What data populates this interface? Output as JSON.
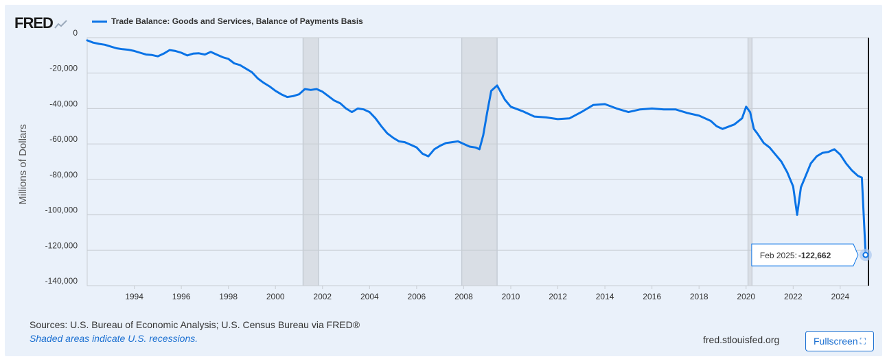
{
  "logo_text": "FRED",
  "header": {
    "legend_label": "Trade Balance: Goods and Services, Balance of Payments Basis",
    "line_color": "#0a73e6"
  },
  "footer": {
    "sources": "Sources: U.S. Bureau of Economic Analysis; U.S. Census Bureau via FRED®",
    "recession_note": "Shaded areas indicate U.S. recessions.",
    "site": "fred.stlouisfed.org",
    "fullscreen_label": "Fullscreen"
  },
  "tooltip": {
    "label": "Feb 2025:",
    "value": "-122,662"
  },
  "chart_data": {
    "type": "line",
    "title": "Trade Balance: Goods and Services, Balance of Payments Basis",
    "ylabel": "Millions of Dollars",
    "xlabel": "",
    "xlim": [
      1992.0,
      2025.2
    ],
    "ylim": [
      -140000,
      0
    ],
    "y_ticks": [
      0,
      -20000,
      -40000,
      -60000,
      -80000,
      -100000,
      -120000,
      -140000
    ],
    "y_tick_labels": [
      "0",
      "-20,000",
      "-40,000",
      "-60,000",
      "-80,000",
      "-100,000",
      "-120,000",
      "-140,000"
    ],
    "x_ticks": [
      1994,
      1996,
      1998,
      2000,
      2002,
      2004,
      2006,
      2008,
      2010,
      2012,
      2014,
      2016,
      2018,
      2020,
      2022,
      2024
    ],
    "x_tick_labels": [
      "1994",
      "1996",
      "1998",
      "2000",
      "2002",
      "2004",
      "2006",
      "2008",
      "2010",
      "2012",
      "2014",
      "2016",
      "2018",
      "2020",
      "2022",
      "2024"
    ],
    "recessions": [
      [
        2001.17,
        2001.83
      ],
      [
        2007.92,
        2009.42
      ],
      [
        2020.08,
        2020.25
      ]
    ],
    "highlight": {
      "x": 2025.08,
      "y": -122662
    },
    "series": [
      {
        "name": "Trade Balance: Goods and Services, Balance of Payments Basis",
        "x": [
          1992.0,
          1992.25,
          1992.5,
          1992.75,
          1993.0,
          1993.25,
          1993.5,
          1993.75,
          1994.0,
          1994.25,
          1994.5,
          1994.75,
          1995.0,
          1995.25,
          1995.5,
          1995.75,
          1996.0,
          1996.25,
          1996.5,
          1996.75,
          1997.0,
          1997.25,
          1997.5,
          1997.75,
          1998.0,
          1998.25,
          1998.5,
          1998.75,
          1999.0,
          1999.25,
          1999.5,
          1999.75,
          2000.0,
          2000.25,
          2000.5,
          2000.75,
          2001.0,
          2001.25,
          2001.5,
          2001.75,
          2002.0,
          2002.25,
          2002.5,
          2002.75,
          2003.0,
          2003.25,
          2003.5,
          2003.75,
          2004.0,
          2004.25,
          2004.5,
          2004.75,
          2005.0,
          2005.25,
          2005.5,
          2005.75,
          2006.0,
          2006.25,
          2006.5,
          2006.75,
          2007.0,
          2007.25,
          2007.5,
          2007.75,
          2008.0,
          2008.25,
          2008.5,
          2008.67,
          2008.83,
          2009.0,
          2009.17,
          2009.42,
          2009.75,
          2010.0,
          2010.5,
          2011.0,
          2011.5,
          2012.0,
          2012.5,
          2013.0,
          2013.5,
          2014.0,
          2014.5,
          2015.0,
          2015.5,
          2016.0,
          2016.5,
          2017.0,
          2017.5,
          2018.0,
          2018.5,
          2018.75,
          2019.0,
          2019.5,
          2019.83,
          2020.0,
          2020.17,
          2020.33,
          2020.5,
          2020.75,
          2021.0,
          2021.25,
          2021.5,
          2021.75,
          2022.0,
          2022.17,
          2022.33,
          2022.5,
          2022.75,
          2023.0,
          2023.25,
          2023.5,
          2023.75,
          2024.0,
          2024.25,
          2024.5,
          2024.75,
          2024.92,
          2025.08
        ],
        "values": [
          -1500,
          -2800,
          -3500,
          -4000,
          -5000,
          -6000,
          -6500,
          -6800,
          -7500,
          -8500,
          -9500,
          -9800,
          -10500,
          -9000,
          -7000,
          -7500,
          -8500,
          -10000,
          -9000,
          -8800,
          -9500,
          -8000,
          -9500,
          -11000,
          -12000,
          -14500,
          -15500,
          -17500,
          -19500,
          -23000,
          -25500,
          -27500,
          -30000,
          -32000,
          -33500,
          -33000,
          -32000,
          -29000,
          -29500,
          -29000,
          -30500,
          -33000,
          -35500,
          -37000,
          -40000,
          -42000,
          -40000,
          -40500,
          -42000,
          -45500,
          -50000,
          -54000,
          -56500,
          -58500,
          -59000,
          -60500,
          -62000,
          -65500,
          -67000,
          -63000,
          -61000,
          -59500,
          -59000,
          -58500,
          -60000,
          -61500,
          -62000,
          -63000,
          -55000,
          -42000,
          -30000,
          -27000,
          -35000,
          -39000,
          -41500,
          -44500,
          -45000,
          -46000,
          -45500,
          -42000,
          -38000,
          -37500,
          -40000,
          -42000,
          -40500,
          -40000,
          -40500,
          -40500,
          -42500,
          -44000,
          -47000,
          -50000,
          -51500,
          -49000,
          -45500,
          -39000,
          -42000,
          -51500,
          -54500,
          -59500,
          -62000,
          -66000,
          -70000,
          -76000,
          -84000,
          -100000,
          -84500,
          -79000,
          -71000,
          -67000,
          -65000,
          -64500,
          -63000,
          -66000,
          -71000,
          -75000,
          -78000,
          -79000,
          -122662
        ]
      }
    ]
  }
}
